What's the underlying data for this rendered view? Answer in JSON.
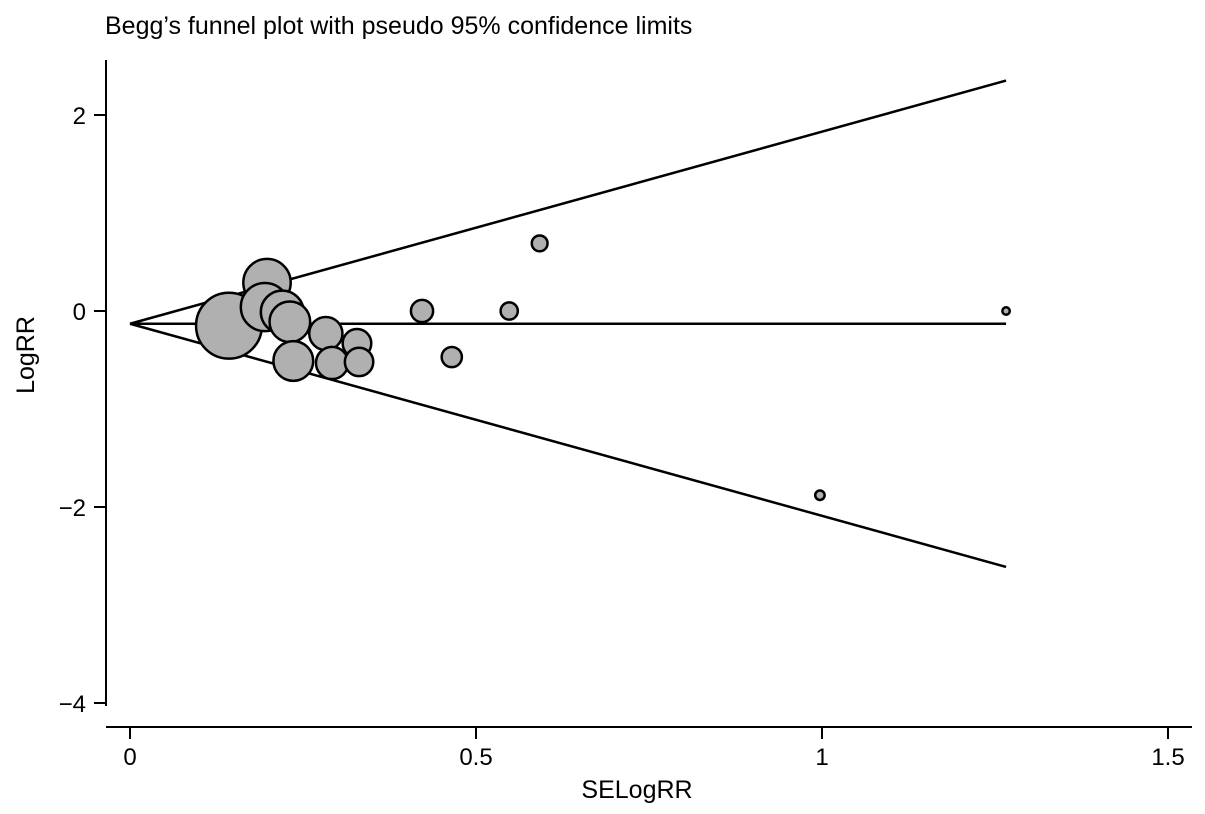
{
  "chart_data": {
    "type": "scatter",
    "title": "Begg’s funnel plot with pseudo 95% confidence limits",
    "xlabel": "SELogRR",
    "ylabel": "LogRR",
    "xlim": [
      0,
      1.5
    ],
    "ylim": [
      -4,
      2.5
    ],
    "xticks": [
      {
        "v": 0,
        "label": "0"
      },
      {
        "v": 0.5,
        "label": "0.5"
      },
      {
        "v": 1,
        "label": "1"
      },
      {
        "v": 1.5,
        "label": "1.5"
      }
    ],
    "yticks": [
      {
        "v": 2,
        "label": "2"
      },
      {
        "v": 0,
        "label": "0"
      },
      {
        "v": -2,
        "label": "−2"
      },
      {
        "v": -4,
        "label": "−4"
      }
    ],
    "grid": false,
    "pooled_estimate": -0.13,
    "funnel_max_se": 1.266,
    "z": 1.96,
    "point_size_rule": "inverse SE",
    "marker_fill": "#b0b0b0",
    "points": [
      {
        "se": 0.143,
        "logrr": -0.15
      },
      {
        "se": 0.198,
        "logrr": 0.29
      },
      {
        "se": 0.195,
        "logrr": 0.04
      },
      {
        "se": 0.22,
        "logrr": -0.01
      },
      {
        "se": 0.231,
        "logrr": -0.11
      },
      {
        "se": 0.236,
        "logrr": -0.51
      },
      {
        "se": 0.283,
        "logrr": -0.23
      },
      {
        "se": 0.292,
        "logrr": -0.53
      },
      {
        "se": 0.328,
        "logrr": -0.33
      },
      {
        "se": 0.331,
        "logrr": -0.52
      },
      {
        "se": 0.422,
        "logrr": 0.0
      },
      {
        "se": 0.465,
        "logrr": -0.47
      },
      {
        "se": 0.548,
        "logrr": 0.0
      },
      {
        "se": 0.592,
        "logrr": 0.69
      },
      {
        "se": 0.997,
        "logrr": -1.88
      },
      {
        "se": 1.266,
        "logrr": 0.0
      }
    ]
  }
}
